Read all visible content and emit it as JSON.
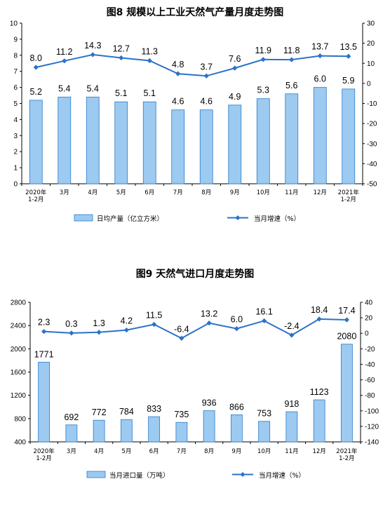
{
  "colors": {
    "bar_fill": "#9ccaf0",
    "bar_stroke": "#2b7ccb",
    "line": "#2b73c7",
    "axis": "#000000",
    "grid": "#c8c8c8"
  },
  "chart_data": [
    {
      "type": "bar+line",
      "title": "图8  规模以上工业天然气产量月度走势图",
      "categories": [
        [
          "2020年",
          "1-2月"
        ],
        [
          "3月"
        ],
        [
          "4月"
        ],
        [
          "5月"
        ],
        [
          "6月"
        ],
        [
          "7月"
        ],
        [
          "8月"
        ],
        [
          "9月"
        ],
        [
          "10月"
        ],
        [
          "11月"
        ],
        [
          "12月"
        ],
        [
          "2021年",
          "1-2月"
        ]
      ],
      "series": [
        {
          "name": "日均产量（亿立方米）",
          "kind": "bar",
          "axis": "left",
          "values": [
            5.2,
            5.4,
            5.4,
            5.1,
            5.1,
            4.6,
            4.6,
            4.9,
            5.3,
            5.6,
            6.0,
            5.9
          ],
          "labels": [
            "5.2",
            "5.4",
            "5.4",
            "5.1",
            "5.1",
            "4.6",
            "4.6",
            "4.9",
            "5.3",
            "5.6",
            "6.0",
            "5.9"
          ]
        },
        {
          "name": "当月增速（%）",
          "kind": "line",
          "axis": "right",
          "values": [
            8.0,
            11.2,
            14.3,
            12.7,
            11.3,
            4.8,
            3.7,
            7.6,
            11.9,
            11.8,
            13.7,
            13.5
          ],
          "labels": [
            "8.0",
            "11.2",
            "14.3",
            "12.7",
            "11.3",
            "4.8",
            "3.7",
            "7.6",
            "11.9",
            "11.8",
            "13.7",
            "13.5"
          ]
        }
      ],
      "y_left": {
        "min": 0,
        "max": 10,
        "ticks": [
          "0",
          "1",
          "2",
          "3",
          "4",
          "5",
          "6",
          "7",
          "8",
          "9",
          "10"
        ]
      },
      "y_right": {
        "min": -50,
        "max": 30,
        "ticks": [
          "-50",
          "-40",
          "-30",
          "-20",
          "-10",
          "0",
          "10",
          "20",
          "30"
        ]
      },
      "grid": false,
      "legend": "bottom"
    },
    {
      "type": "bar+line",
      "title": "图9  天然气进口月度走势图",
      "categories": [
        [
          "2020年",
          "1-2月"
        ],
        [
          "3月"
        ],
        [
          "4月"
        ],
        [
          "5月"
        ],
        [
          "6月"
        ],
        [
          "7月"
        ],
        [
          "8月"
        ],
        [
          "9月"
        ],
        [
          "10月"
        ],
        [
          "11月"
        ],
        [
          "12月"
        ],
        [
          "2021年",
          "1-2月"
        ]
      ],
      "series": [
        {
          "name": "当月进口量（万吨）",
          "kind": "bar",
          "axis": "left",
          "values": [
            1771,
            692,
            772,
            784,
            833,
            735,
            936,
            866,
            753,
            918,
            1123,
            2080
          ],
          "labels": [
            "1771",
            "692",
            "772",
            "784",
            "833",
            "735",
            "936",
            "866",
            "753",
            "918",
            "1123",
            "2080"
          ]
        },
        {
          "name": "当月增速（%）",
          "kind": "line",
          "axis": "right",
          "values": [
            2.3,
            0.3,
            1.3,
            4.2,
            11.5,
            -6.4,
            13.2,
            6.0,
            16.1,
            -2.4,
            18.4,
            17.4
          ],
          "labels": [
            "2.3",
            "0.3",
            "1.3",
            "4.2",
            "11.5",
            "-6.4",
            "13.2",
            "6.0",
            "16.1",
            "-2.4",
            "18.4",
            "17.4"
          ]
        }
      ],
      "y_left": {
        "min": 400,
        "max": 2800,
        "ticks": [
          "400",
          "800",
          "1200",
          "1600",
          "2000",
          "2400",
          "2800"
        ]
      },
      "y_right": {
        "min": -140,
        "max": 40,
        "ticks": [
          "-140",
          "-120",
          "-100",
          "-80",
          "-60",
          "-40",
          "-20",
          "0",
          "20",
          "40"
        ]
      },
      "grid": false,
      "legend": "bottom"
    }
  ]
}
